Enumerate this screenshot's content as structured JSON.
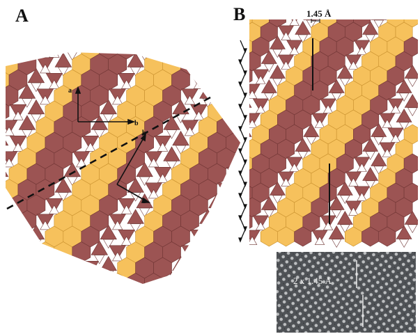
{
  "figure": {
    "panel_a_label": "A",
    "panel_b_label": "B",
    "panel_a_axes": {
      "a1": "a",
      "b1": "b",
      "b2": "b",
      "a2": "a"
    },
    "panel_b_spacing": "1.45 Å",
    "micrograph_label": "2 x 1.45 Å",
    "colors": {
      "octahedra": "#9c5453",
      "octahedra_edge": "#6e3433",
      "tetra": "#f6c15c",
      "tetra_edge": "#c8902d",
      "tetra_inner": "#e8a946"
    }
  }
}
